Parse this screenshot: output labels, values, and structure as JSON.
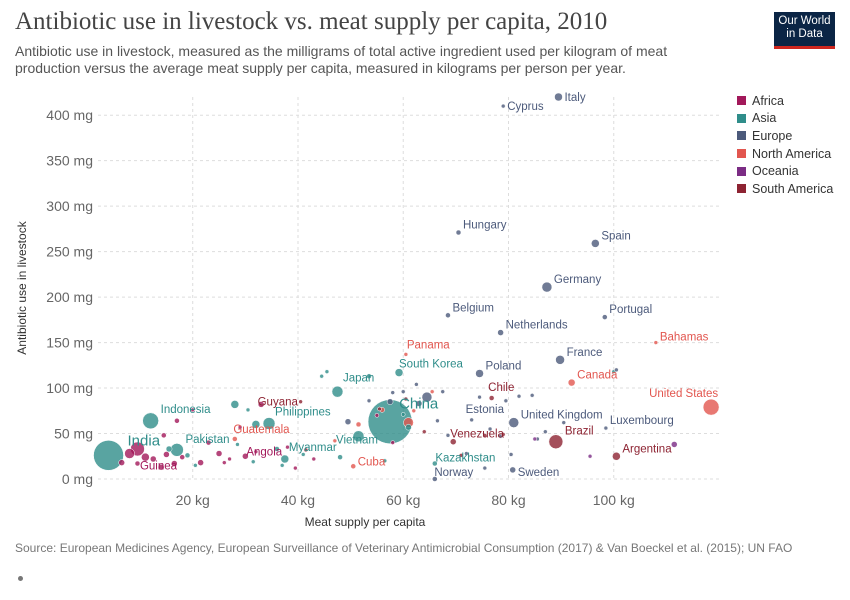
{
  "header": {
    "title": "Antibiotic use in livestock vs. meat supply per capita, 2010",
    "subtitle": "Antibiotic use in livestock, measured as the milligrams of total active ingredient used per kilogram of meat production versus the average meat supply per capita, measured in kilograms per person per year."
  },
  "logo": {
    "line1": "Our World",
    "line2": "in Data"
  },
  "footer": {
    "source": "Source: European Medicines Agency, European Surveillance of Veterinary Antimicrobial Consumption (2017) & Van Boeckel et al. (2015); UN FAO"
  },
  "colors": {
    "Africa": "#a2185a",
    "Asia": "#2f8d8a",
    "Europe": "#4c5a7b",
    "North America": "#e2564f",
    "Oceania": "#7b2c84",
    "South America": "#8d2332",
    "grid": "#dddddd",
    "text": "#555555"
  },
  "chart_data": {
    "type": "scatter",
    "title": "Antibiotic use in livestock vs. meat supply per capita, 2010",
    "xlabel": "Meat supply per capita",
    "ylabel": "Antibiotic use in livestock",
    "xlim": [
      2,
      120
    ],
    "ylim": [
      0,
      420
    ],
    "x_ticks": [
      20,
      40,
      60,
      80,
      100
    ],
    "x_tick_labels": [
      "20 kg",
      "40 kg",
      "60 kg",
      "80 kg",
      "100 kg"
    ],
    "y_ticks": [
      0,
      50,
      100,
      150,
      200,
      250,
      300,
      350,
      400
    ],
    "y_tick_labels": [
      "0 mg",
      "50 mg",
      "100 mg",
      "150 mg",
      "200 mg",
      "250 mg",
      "300 mg",
      "350 mg",
      "400 mg"
    ],
    "grid": true,
    "legend_position": "right",
    "legend": [
      "Africa",
      "Asia",
      "Europe",
      "North America",
      "Oceania",
      "South America"
    ],
    "points": [
      {
        "label": "Italy",
        "region": "Europe",
        "x": 89.5,
        "y": 420,
        "size": 4
      },
      {
        "label": "Cyprus",
        "region": "Europe",
        "x": 79,
        "y": 410,
        "size": 2
      },
      {
        "label": "Hungary",
        "region": "Europe",
        "x": 70.5,
        "y": 271,
        "size": 2.5
      },
      {
        "label": "Spain",
        "region": "Europe",
        "x": 96.5,
        "y": 259,
        "size": 4
      },
      {
        "label": "Germany",
        "region": "Europe",
        "x": 87.3,
        "y": 211,
        "size": 5
      },
      {
        "label": "Belgium",
        "region": "Europe",
        "x": 68.5,
        "y": 180,
        "size": 2.5
      },
      {
        "label": "Portugal",
        "region": "Europe",
        "x": 98.3,
        "y": 178,
        "size": 2.5
      },
      {
        "label": "Netherlands",
        "region": "Europe",
        "x": 78.5,
        "y": 161,
        "size": 3
      },
      {
        "label": "Bahamas",
        "region": "North America",
        "x": 108,
        "y": 150,
        "size": 2
      },
      {
        "label": "Panama",
        "region": "North America",
        "x": 60.5,
        "y": 137,
        "size": 2
      },
      {
        "label": "France",
        "region": "Europe",
        "x": 89.8,
        "y": 131,
        "size": 4.5
      },
      {
        "label": "South Korea",
        "region": "Asia",
        "x": 59.2,
        "y": 117,
        "size": 4
      },
      {
        "label": "Poland",
        "region": "Europe",
        "x": 74.5,
        "y": 116,
        "size": 4
      },
      {
        "label": "Canada",
        "region": "North America",
        "x": 92,
        "y": 106,
        "size": 3.5
      },
      {
        "label": "Japan",
        "region": "Asia",
        "x": 47.5,
        "y": 96,
        "size": 5.5
      },
      {
        "label": "Chile",
        "region": "South America",
        "x": 76.8,
        "y": 89,
        "size": 2.5
      },
      {
        "label": "Guyana",
        "region": "South America",
        "x": 40.5,
        "y": 85,
        "size": 2
      },
      {
        "label": "China",
        "region": "Asia",
        "x": 57.5,
        "y": 63,
        "size": 22
      },
      {
        "label": "United States",
        "region": "North America",
        "x": 118.5,
        "y": 79,
        "size": 8
      },
      {
        "label": "Indonesia",
        "region": "Asia",
        "x": 12,
        "y": 64,
        "size": 8
      },
      {
        "label": "Philippines",
        "region": "Asia",
        "x": 34.5,
        "y": 61,
        "size": 6
      },
      {
        "label": "Vietnam",
        "region": "Asia",
        "x": 51.5,
        "y": 47,
        "size": 5.5
      },
      {
        "label": "Estonia",
        "region": "Europe",
        "x": 73,
        "y": 65,
        "size": 2
      },
      {
        "label": "United Kingdom",
        "region": "Europe",
        "x": 81,
        "y": 62,
        "size": 5
      },
      {
        "label": "Luxembourg",
        "region": "Europe",
        "x": 98.5,
        "y": 56,
        "size": 2
      },
      {
        "label": "Venezuela",
        "region": "South America",
        "x": 69.5,
        "y": 41,
        "size": 3
      },
      {
        "label": "Brazil",
        "region": "South America",
        "x": 89,
        "y": 41,
        "size": 7
      },
      {
        "label": "Argentina",
        "region": "South America",
        "x": 100.5,
        "y": 25,
        "size": 4
      },
      {
        "label": "India",
        "region": "Asia",
        "x": 4,
        "y": 26,
        "size": 15
      },
      {
        "label": "Pakistan",
        "region": "Asia",
        "x": 17,
        "y": 32,
        "size": 6.5
      },
      {
        "label": "Guatemala",
        "region": "North America",
        "x": 28,
        "y": 44,
        "size": 2.5
      },
      {
        "label": "Guinea",
        "region": "Africa",
        "x": 9.5,
        "y": 17,
        "size": 2.5
      },
      {
        "label": "Angola",
        "region": "Africa",
        "x": 30,
        "y": 25,
        "size": 3
      },
      {
        "label": "Myanmar",
        "region": "Asia",
        "x": 37.5,
        "y": 22,
        "size": 4
      },
      {
        "label": "Cuba",
        "region": "North America",
        "x": 50.5,
        "y": 14,
        "size": 2.5
      },
      {
        "label": "Kazakhstan",
        "region": "Asia",
        "x": 66,
        "y": 17,
        "size": 2.5
      },
      {
        "label": "Norway",
        "region": "Europe",
        "x": 66,
        "y": 0,
        "size": 2.5
      },
      {
        "label": "Sweden",
        "region": "Europe",
        "x": 80.8,
        "y": 10,
        "size": 3
      },
      {
        "label": "",
        "region": "Africa",
        "x": 6.5,
        "y": 18,
        "size": 3
      },
      {
        "label": "",
        "region": "Africa",
        "x": 8,
        "y": 28,
        "size": 5
      },
      {
        "label": "",
        "region": "Africa",
        "x": 9.5,
        "y": 33,
        "size": 7
      },
      {
        "label": "",
        "region": "Africa",
        "x": 11,
        "y": 24,
        "size": 4
      },
      {
        "label": "",
        "region": "Africa",
        "x": 12.5,
        "y": 22,
        "size": 3
      },
      {
        "label": "",
        "region": "Africa",
        "x": 14,
        "y": 13,
        "size": 3
      },
      {
        "label": "",
        "region": "Africa",
        "x": 15,
        "y": 27,
        "size": 3
      },
      {
        "label": "",
        "region": "Africa",
        "x": 16.5,
        "y": 17,
        "size": 3
      },
      {
        "label": "",
        "region": "Africa",
        "x": 18,
        "y": 24,
        "size": 2.5
      },
      {
        "label": "",
        "region": "Africa",
        "x": 14.5,
        "y": 48,
        "size": 2.5
      },
      {
        "label": "",
        "region": "Africa",
        "x": 17,
        "y": 64,
        "size": 2.5
      },
      {
        "label": "",
        "region": "Africa",
        "x": 21.5,
        "y": 18,
        "size": 3
      },
      {
        "label": "",
        "region": "Africa",
        "x": 23,
        "y": 40,
        "size": 2.5
      },
      {
        "label": "",
        "region": "Africa",
        "x": 25,
        "y": 28,
        "size": 3
      },
      {
        "label": "",
        "region": "Africa",
        "x": 26,
        "y": 18,
        "size": 2
      },
      {
        "label": "",
        "region": "Africa",
        "x": 27,
        "y": 22,
        "size": 2
      },
      {
        "label": "",
        "region": "Africa",
        "x": 29,
        "y": 57,
        "size": 2
      },
      {
        "label": "",
        "region": "Africa",
        "x": 32,
        "y": 30,
        "size": 2
      },
      {
        "label": "",
        "region": "Africa",
        "x": 33,
        "y": 82,
        "size": 3
      },
      {
        "label": "",
        "region": "Africa",
        "x": 38,
        "y": 35,
        "size": 2
      },
      {
        "label": "",
        "region": "Africa",
        "x": 39.5,
        "y": 12,
        "size": 2
      },
      {
        "label": "",
        "region": "Africa",
        "x": 43,
        "y": 22,
        "size": 2
      },
      {
        "label": "",
        "region": "Africa",
        "x": 55,
        "y": 70,
        "size": 2
      },
      {
        "label": "",
        "region": "Africa",
        "x": 58,
        "y": 40,
        "size": 2
      },
      {
        "label": "",
        "region": "Africa",
        "x": 20,
        "y": 76,
        "size": 2
      },
      {
        "label": "",
        "region": "Asia",
        "x": 15.5,
        "y": 33,
        "size": 3
      },
      {
        "label": "",
        "region": "Asia",
        "x": 19,
        "y": 26,
        "size": 2.5
      },
      {
        "label": "",
        "region": "Asia",
        "x": 20.5,
        "y": 15,
        "size": 2
      },
      {
        "label": "",
        "region": "Asia",
        "x": 28.5,
        "y": 38,
        "size": 2
      },
      {
        "label": "",
        "region": "Asia",
        "x": 28,
        "y": 82,
        "size": 4
      },
      {
        "label": "",
        "region": "Asia",
        "x": 30.5,
        "y": 76,
        "size": 2
      },
      {
        "label": "",
        "region": "Asia",
        "x": 31.5,
        "y": 19,
        "size": 2
      },
      {
        "label": "",
        "region": "Asia",
        "x": 32,
        "y": 60,
        "size": 4
      },
      {
        "label": "",
        "region": "Asia",
        "x": 36,
        "y": 33,
        "size": 2.5
      },
      {
        "label": "",
        "region": "Asia",
        "x": 37,
        "y": 15,
        "size": 2
      },
      {
        "label": "",
        "region": "Asia",
        "x": 41,
        "y": 27,
        "size": 2
      },
      {
        "label": "",
        "region": "Asia",
        "x": 44.5,
        "y": 113,
        "size": 2
      },
      {
        "label": "",
        "region": "Asia",
        "x": 45.5,
        "y": 118,
        "size": 2
      },
      {
        "label": "",
        "region": "Asia",
        "x": 48,
        "y": 24,
        "size": 2.5
      },
      {
        "label": "",
        "region": "Asia",
        "x": 53.5,
        "y": 113,
        "size": 2.5
      },
      {
        "label": "",
        "region": "Asia",
        "x": 56.5,
        "y": 20,
        "size": 2
      },
      {
        "label": "",
        "region": "Asia",
        "x": 60,
        "y": 71,
        "size": 2
      },
      {
        "label": "",
        "region": "Asia",
        "x": 61,
        "y": 57,
        "size": 3
      },
      {
        "label": "",
        "region": "Asia",
        "x": 100,
        "y": 118,
        "size": 2
      },
      {
        "label": "",
        "region": "Europe",
        "x": 49.5,
        "y": 63,
        "size": 3
      },
      {
        "label": "",
        "region": "Europe",
        "x": 53.5,
        "y": 86,
        "size": 2
      },
      {
        "label": "",
        "region": "Europe",
        "x": 57.5,
        "y": 85,
        "size": 3
      },
      {
        "label": "",
        "region": "Europe",
        "x": 58,
        "y": 95,
        "size": 2
      },
      {
        "label": "",
        "region": "Europe",
        "x": 60,
        "y": 96,
        "size": 2
      },
      {
        "label": "",
        "region": "Europe",
        "x": 63,
        "y": 83,
        "size": 3
      },
      {
        "label": "",
        "region": "Europe",
        "x": 64.5,
        "y": 90,
        "size": 5
      },
      {
        "label": "",
        "region": "Europe",
        "x": 62.5,
        "y": 104,
        "size": 2
      },
      {
        "label": "",
        "region": "Europe",
        "x": 66.5,
        "y": 64,
        "size": 2
      },
      {
        "label": "",
        "region": "Europe",
        "x": 68.5,
        "y": 48,
        "size": 2
      },
      {
        "label": "",
        "region": "Europe",
        "x": 67.5,
        "y": 96,
        "size": 2
      },
      {
        "label": "",
        "region": "Europe",
        "x": 72,
        "y": 28,
        "size": 2
      },
      {
        "label": "",
        "region": "Europe",
        "x": 74.5,
        "y": 90,
        "size": 2
      },
      {
        "label": "",
        "region": "Europe",
        "x": 75.5,
        "y": 12,
        "size": 2
      },
      {
        "label": "",
        "region": "Europe",
        "x": 76.5,
        "y": 55,
        "size": 2
      },
      {
        "label": "",
        "region": "Europe",
        "x": 78.5,
        "y": 47,
        "size": 2
      },
      {
        "label": "",
        "region": "Europe",
        "x": 79.5,
        "y": 86,
        "size": 2
      },
      {
        "label": "",
        "region": "Europe",
        "x": 80.5,
        "y": 27,
        "size": 2
      },
      {
        "label": "",
        "region": "Europe",
        "x": 82,
        "y": 91,
        "size": 2
      },
      {
        "label": "",
        "region": "Europe",
        "x": 84.5,
        "y": 92,
        "size": 2
      },
      {
        "label": "",
        "region": "Europe",
        "x": 85.5,
        "y": 44,
        "size": 2
      },
      {
        "label": "",
        "region": "Europe",
        "x": 87,
        "y": 52,
        "size": 2
      },
      {
        "label": "",
        "region": "Europe",
        "x": 90.5,
        "y": 62,
        "size": 2
      },
      {
        "label": "",
        "region": "Europe",
        "x": 100.5,
        "y": 120,
        "size": 2
      },
      {
        "label": "",
        "region": "North America",
        "x": 47,
        "y": 42,
        "size": 2
      },
      {
        "label": "",
        "region": "North America",
        "x": 51.5,
        "y": 60,
        "size": 2.5
      },
      {
        "label": "",
        "region": "North America",
        "x": 56,
        "y": 76,
        "size": 2.5
      },
      {
        "label": "",
        "region": "North America",
        "x": 61,
        "y": 62,
        "size": 5
      },
      {
        "label": "",
        "region": "North America",
        "x": 65.5,
        "y": 96,
        "size": 2
      },
      {
        "label": "",
        "region": "North America",
        "x": 62,
        "y": 75,
        "size": 2
      },
      {
        "label": "",
        "region": "Oceania",
        "x": 85,
        "y": 44,
        "size": 2
      },
      {
        "label": "",
        "region": "Oceania",
        "x": 95.5,
        "y": 25,
        "size": 2
      },
      {
        "label": "",
        "region": "Oceania",
        "x": 111.5,
        "y": 38,
        "size": 3
      },
      {
        "label": "",
        "region": "South America",
        "x": 41.5,
        "y": 32,
        "size": 2
      },
      {
        "label": "",
        "region": "South America",
        "x": 55.5,
        "y": 77,
        "size": 2
      },
      {
        "label": "",
        "region": "South America",
        "x": 60.5,
        "y": 88,
        "size": 2
      },
      {
        "label": "",
        "region": "South America",
        "x": 64,
        "y": 52,
        "size": 2
      },
      {
        "label": "",
        "region": "South America",
        "x": 71,
        "y": 26,
        "size": 2
      },
      {
        "label": "",
        "region": "South America",
        "x": 75.5,
        "y": 48,
        "size": 2
      },
      {
        "label": "",
        "region": "South America",
        "x": 79,
        "y": 49,
        "size": 2
      }
    ]
  }
}
